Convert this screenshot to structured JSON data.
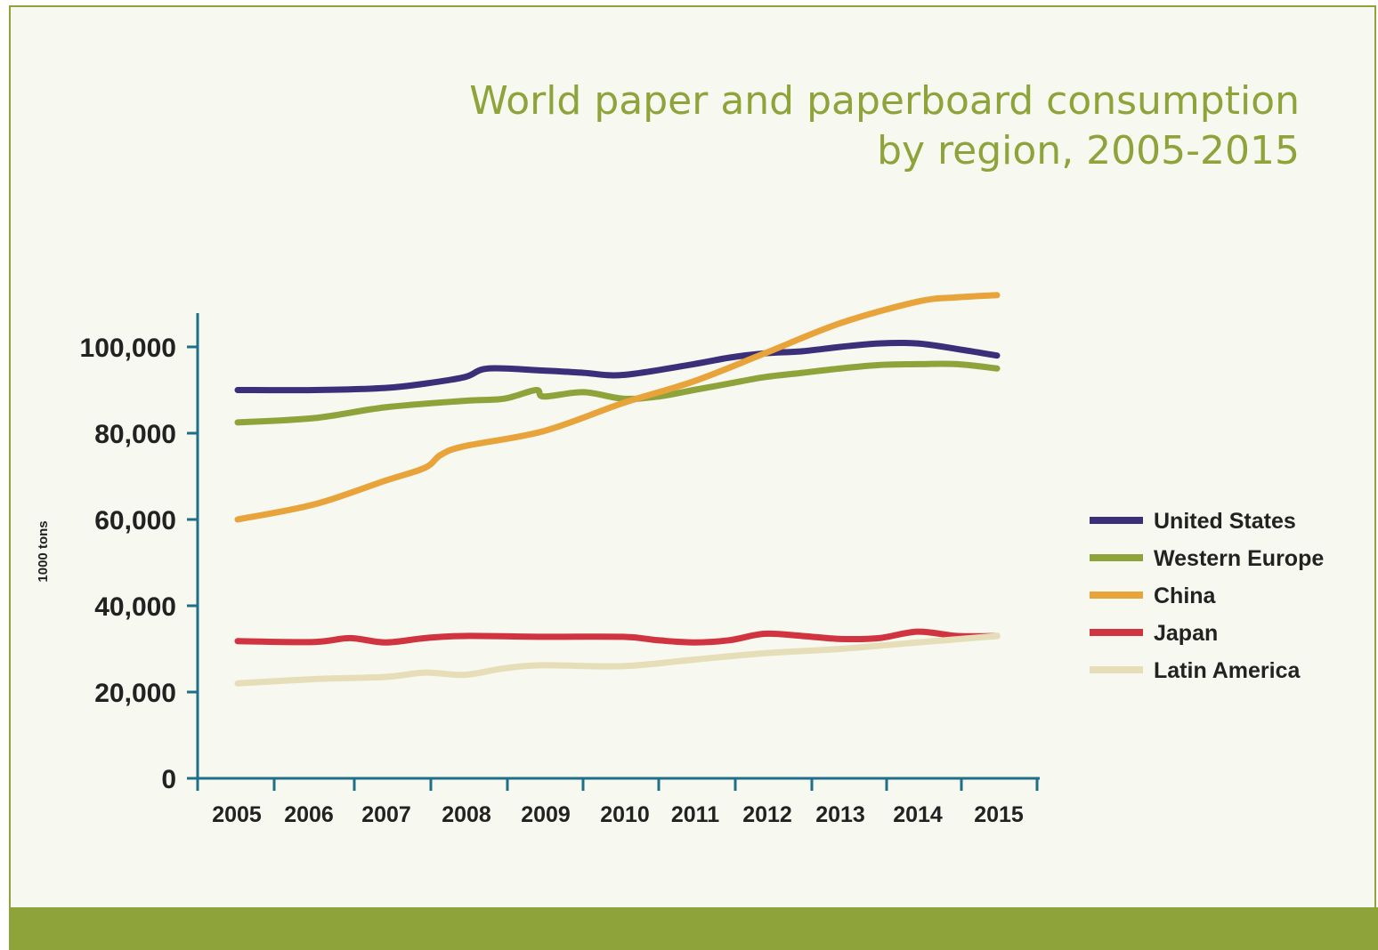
{
  "chart_data": {
    "type": "line",
    "title": "World paper and paperboard consumption",
    "subtitle": "by region, 2005-2015",
    "ylabel": "1000 tons",
    "xlabel": "",
    "ylim": [
      0,
      108000
    ],
    "yticks": [
      0,
      20000,
      40000,
      60000,
      80000,
      100000
    ],
    "ytick_labels": [
      "0",
      "20,000",
      "40,000",
      "60,000",
      "80,000",
      "100,000"
    ],
    "xticks": [
      2005,
      2006,
      2007,
      2008,
      2009,
      2010,
      2011,
      2012,
      2013,
      2014,
      2015
    ],
    "xtick_labels": [
      "2005",
      "2006",
      "2007",
      "2008",
      "2009",
      "2010",
      "2011",
      "2012",
      "2013",
      "2014",
      "2015"
    ],
    "grid": false,
    "legend_position": "right",
    "series": [
      {
        "name": "United States",
        "color": "#3b2f7a",
        "x": [
          2005,
          2006,
          2007,
          2007.5,
          2008,
          2008.3,
          2009,
          2009.5,
          2010,
          2011,
          2011.5,
          2012,
          2012.5,
          2013,
          2013.5,
          2014,
          2014.5,
          2015
        ],
        "y": [
          90000,
          90000,
          90500,
          91500,
          93000,
          95000,
          94500,
          94000,
          93500,
          96000,
          97500,
          98500,
          99000,
          100000,
          100800,
          100800,
          99500,
          98000
        ]
      },
      {
        "name": "Western Europe",
        "color": "#8ea33a",
        "x": [
          2005,
          2006,
          2007,
          2008,
          2008.5,
          2008.9,
          2009,
          2009.5,
          2010,
          2010.5,
          2011,
          2011.5,
          2012,
          2012.5,
          2013,
          2013.5,
          2014,
          2014.5,
          2015
        ],
        "y": [
          82500,
          83500,
          86000,
          87500,
          88000,
          90000,
          88500,
          89500,
          88000,
          88500,
          90000,
          91500,
          93000,
          94000,
          95000,
          95800,
          96000,
          96000,
          95000
        ]
      },
      {
        "name": "China",
        "color": "#e8a33b",
        "x": [
          2005,
          2006,
          2007,
          2007.5,
          2007.7,
          2008,
          2009,
          2010,
          2011,
          2012,
          2013,
          2014,
          2014.5,
          2015
        ],
        "y": [
          60000,
          63500,
          69000,
          72000,
          75000,
          77000,
          80500,
          87000,
          92000,
          98500,
          105500,
          110500,
          111500,
          112000
        ]
      },
      {
        "name": "Japan",
        "color": "#cf3440",
        "x": [
          2005,
          2006,
          2006.5,
          2007,
          2007.5,
          2008,
          2009,
          2010,
          2010.5,
          2011,
          2011.5,
          2012,
          2012.5,
          2013,
          2013.5,
          2014,
          2014.5,
          2015
        ],
        "y": [
          31800,
          31600,
          32500,
          31500,
          32500,
          33000,
          32800,
          32800,
          32000,
          31500,
          32000,
          33500,
          33000,
          32300,
          32500,
          34000,
          33000,
          33000
        ]
      },
      {
        "name": "Latin America",
        "color": "#e6deb8",
        "x": [
          2005,
          2006,
          2007,
          2007.5,
          2008,
          2008.5,
          2009,
          2010,
          2011,
          2012,
          2013,
          2014,
          2015
        ],
        "y": [
          22000,
          23000,
          23500,
          24500,
          24000,
          25500,
          26200,
          26000,
          27500,
          29000,
          30000,
          31500,
          33000
        ]
      }
    ]
  }
}
